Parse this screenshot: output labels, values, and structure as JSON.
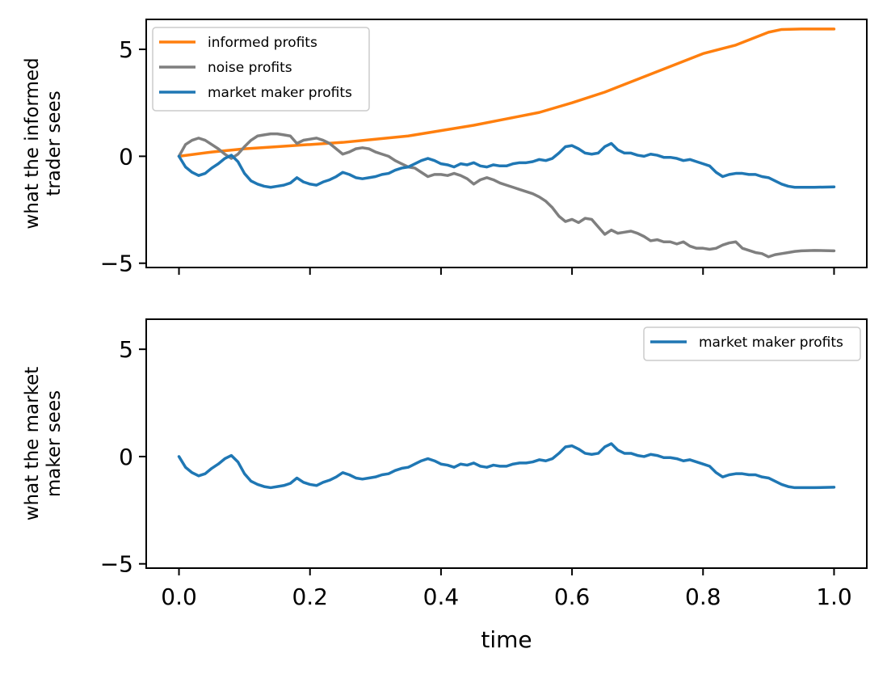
{
  "chart_data": [
    {
      "type": "line",
      "ylabel_lines": [
        "what the informed",
        "trader sees"
      ],
      "xlabel": "",
      "xlim": [
        -0.05,
        1.05
      ],
      "ylim": [
        -5.2,
        6.4
      ],
      "xticks": [
        0.0,
        0.2,
        0.4,
        0.6,
        0.8,
        1.0
      ],
      "xticklabels": [
        "",
        "",
        "",
        "",
        "",
        ""
      ],
      "yticks": [
        -5,
        0,
        5
      ],
      "yticklabels": [
        "−5",
        "0",
        "5"
      ],
      "grid": false,
      "legend_position": "upper-left",
      "series": [
        {
          "name": "informed profits",
          "color": "#ff7f0e",
          "x": [
            0.0,
            0.05,
            0.1,
            0.15,
            0.2,
            0.25,
            0.3,
            0.35,
            0.4,
            0.45,
            0.5,
            0.55,
            0.6,
            0.65,
            0.7,
            0.75,
            0.8,
            0.85,
            0.9,
            0.92,
            0.95,
            1.0
          ],
          "y": [
            0.0,
            0.2,
            0.35,
            0.45,
            0.55,
            0.65,
            0.8,
            0.95,
            1.2,
            1.45,
            1.75,
            2.05,
            2.5,
            3.0,
            3.6,
            4.2,
            4.8,
            5.2,
            5.8,
            5.93,
            5.95,
            5.95
          ]
        },
        {
          "name": "noise profits",
          "color": "#7f7f7f",
          "x": [
            0.0,
            0.01,
            0.02,
            0.03,
            0.04,
            0.05,
            0.06,
            0.07,
            0.08,
            0.09,
            0.1,
            0.11,
            0.12,
            0.13,
            0.14,
            0.15,
            0.16,
            0.17,
            0.18,
            0.19,
            0.2,
            0.21,
            0.22,
            0.23,
            0.24,
            0.25,
            0.26,
            0.27,
            0.28,
            0.29,
            0.3,
            0.31,
            0.32,
            0.33,
            0.34,
            0.35,
            0.36,
            0.37,
            0.38,
            0.39,
            0.4,
            0.41,
            0.42,
            0.43,
            0.44,
            0.45,
            0.46,
            0.47,
            0.48,
            0.49,
            0.5,
            0.51,
            0.52,
            0.53,
            0.54,
            0.55,
            0.56,
            0.57,
            0.58,
            0.59,
            0.6,
            0.61,
            0.62,
            0.63,
            0.64,
            0.65,
            0.66,
            0.67,
            0.68,
            0.69,
            0.7,
            0.71,
            0.72,
            0.73,
            0.74,
            0.75,
            0.76,
            0.77,
            0.78,
            0.79,
            0.8,
            0.81,
            0.82,
            0.83,
            0.84,
            0.85,
            0.86,
            0.87,
            0.88,
            0.89,
            0.9,
            0.91,
            0.92,
            0.93,
            0.94,
            0.95,
            0.97,
            1.0
          ],
          "y": [
            0.0,
            0.55,
            0.75,
            0.85,
            0.75,
            0.55,
            0.35,
            0.1,
            -0.1,
            0.1,
            0.45,
            0.75,
            0.95,
            1.0,
            1.05,
            1.05,
            1.0,
            0.95,
            0.6,
            0.75,
            0.8,
            0.85,
            0.75,
            0.6,
            0.35,
            0.1,
            0.2,
            0.35,
            0.4,
            0.35,
            0.2,
            0.1,
            0.0,
            -0.2,
            -0.35,
            -0.5,
            -0.55,
            -0.75,
            -0.95,
            -0.85,
            -0.85,
            -0.9,
            -0.8,
            -0.9,
            -1.05,
            -1.3,
            -1.1,
            -1.0,
            -1.1,
            -1.25,
            -1.35,
            -1.45,
            -1.55,
            -1.65,
            -1.75,
            -1.9,
            -2.1,
            -2.4,
            -2.8,
            -3.05,
            -2.95,
            -3.1,
            -2.9,
            -2.95,
            -3.3,
            -3.65,
            -3.45,
            -3.6,
            -3.55,
            -3.5,
            -3.6,
            -3.75,
            -3.95,
            -3.9,
            -4.0,
            -4.0,
            -4.1,
            -4.0,
            -4.2,
            -4.3,
            -4.3,
            -4.35,
            -4.3,
            -4.15,
            -4.05,
            -4.0,
            -4.3,
            -4.4,
            -4.5,
            -4.55,
            -4.7,
            -4.6,
            -4.55,
            -4.5,
            -4.45,
            -4.42,
            -4.4,
            -4.42
          ]
        },
        {
          "name": "market maker profits",
          "color": "#1f77b4",
          "x": [
            0.0,
            0.01,
            0.02,
            0.03,
            0.04,
            0.05,
            0.06,
            0.07,
            0.08,
            0.09,
            0.1,
            0.11,
            0.12,
            0.13,
            0.14,
            0.15,
            0.16,
            0.17,
            0.18,
            0.19,
            0.2,
            0.21,
            0.22,
            0.23,
            0.24,
            0.25,
            0.26,
            0.27,
            0.28,
            0.29,
            0.3,
            0.31,
            0.32,
            0.33,
            0.34,
            0.35,
            0.36,
            0.37,
            0.38,
            0.39,
            0.4,
            0.41,
            0.42,
            0.43,
            0.44,
            0.45,
            0.46,
            0.47,
            0.48,
            0.49,
            0.5,
            0.51,
            0.52,
            0.53,
            0.54,
            0.55,
            0.56,
            0.57,
            0.58,
            0.59,
            0.6,
            0.61,
            0.62,
            0.63,
            0.64,
            0.65,
            0.66,
            0.67,
            0.68,
            0.69,
            0.7,
            0.71,
            0.72,
            0.73,
            0.74,
            0.75,
            0.76,
            0.77,
            0.78,
            0.79,
            0.8,
            0.81,
            0.82,
            0.83,
            0.84,
            0.85,
            0.86,
            0.87,
            0.88,
            0.89,
            0.9,
            0.91,
            0.92,
            0.93,
            0.94,
            0.95,
            0.97,
            1.0
          ],
          "y": [
            0.0,
            -0.5,
            -0.75,
            -0.9,
            -0.8,
            -0.55,
            -0.35,
            -0.1,
            0.05,
            -0.25,
            -0.8,
            -1.15,
            -1.3,
            -1.4,
            -1.45,
            -1.4,
            -1.35,
            -1.25,
            -1.0,
            -1.2,
            -1.3,
            -1.35,
            -1.2,
            -1.1,
            -0.95,
            -0.75,
            -0.85,
            -1.0,
            -1.05,
            -1.0,
            -0.95,
            -0.85,
            -0.8,
            -0.65,
            -0.55,
            -0.5,
            -0.35,
            -0.2,
            -0.1,
            -0.2,
            -0.35,
            -0.4,
            -0.5,
            -0.35,
            -0.4,
            -0.3,
            -0.45,
            -0.5,
            -0.4,
            -0.45,
            -0.45,
            -0.35,
            -0.3,
            -0.3,
            -0.25,
            -0.15,
            -0.2,
            -0.1,
            0.15,
            0.45,
            0.5,
            0.35,
            0.15,
            0.1,
            0.15,
            0.45,
            0.6,
            0.3,
            0.15,
            0.15,
            0.05,
            0.0,
            0.1,
            0.05,
            -0.05,
            -0.05,
            -0.1,
            -0.2,
            -0.15,
            -0.25,
            -0.35,
            -0.45,
            -0.75,
            -0.95,
            -0.85,
            -0.8,
            -0.8,
            -0.85,
            -0.85,
            -0.95,
            -1.0,
            -1.15,
            -1.3,
            -1.4,
            -1.45,
            -1.45,
            -1.45,
            -1.43
          ]
        }
      ]
    },
    {
      "type": "line",
      "ylabel_lines": [
        "what the market",
        "maker sees"
      ],
      "xlabel": "time",
      "xlim": [
        -0.05,
        1.05
      ],
      "ylim": [
        -5.2,
        6.4
      ],
      "xticks": [
        0.0,
        0.2,
        0.4,
        0.6,
        0.8,
        1.0
      ],
      "xticklabels": [
        "0.0",
        "0.2",
        "0.4",
        "0.6",
        "0.8",
        "1.0"
      ],
      "yticks": [
        -5,
        0,
        5
      ],
      "yticklabels": [
        "−5",
        "0",
        "5"
      ],
      "grid": false,
      "legend_position": "upper-right",
      "series": [
        {
          "name": "market maker profits",
          "color": "#1f77b4",
          "x": [
            0.0,
            0.01,
            0.02,
            0.03,
            0.04,
            0.05,
            0.06,
            0.07,
            0.08,
            0.09,
            0.1,
            0.11,
            0.12,
            0.13,
            0.14,
            0.15,
            0.16,
            0.17,
            0.18,
            0.19,
            0.2,
            0.21,
            0.22,
            0.23,
            0.24,
            0.25,
            0.26,
            0.27,
            0.28,
            0.29,
            0.3,
            0.31,
            0.32,
            0.33,
            0.34,
            0.35,
            0.36,
            0.37,
            0.38,
            0.39,
            0.4,
            0.41,
            0.42,
            0.43,
            0.44,
            0.45,
            0.46,
            0.47,
            0.48,
            0.49,
            0.5,
            0.51,
            0.52,
            0.53,
            0.54,
            0.55,
            0.56,
            0.57,
            0.58,
            0.59,
            0.6,
            0.61,
            0.62,
            0.63,
            0.64,
            0.65,
            0.66,
            0.67,
            0.68,
            0.69,
            0.7,
            0.71,
            0.72,
            0.73,
            0.74,
            0.75,
            0.76,
            0.77,
            0.78,
            0.79,
            0.8,
            0.81,
            0.82,
            0.83,
            0.84,
            0.85,
            0.86,
            0.87,
            0.88,
            0.89,
            0.9,
            0.91,
            0.92,
            0.93,
            0.94,
            0.95,
            0.97,
            1.0
          ],
          "y": [
            0.0,
            -0.5,
            -0.75,
            -0.9,
            -0.8,
            -0.55,
            -0.35,
            -0.1,
            0.05,
            -0.25,
            -0.8,
            -1.15,
            -1.3,
            -1.4,
            -1.45,
            -1.4,
            -1.35,
            -1.25,
            -1.0,
            -1.2,
            -1.3,
            -1.35,
            -1.2,
            -1.1,
            -0.95,
            -0.75,
            -0.85,
            -1.0,
            -1.05,
            -1.0,
            -0.95,
            -0.85,
            -0.8,
            -0.65,
            -0.55,
            -0.5,
            -0.35,
            -0.2,
            -0.1,
            -0.2,
            -0.35,
            -0.4,
            -0.5,
            -0.35,
            -0.4,
            -0.3,
            -0.45,
            -0.5,
            -0.4,
            -0.45,
            -0.45,
            -0.35,
            -0.3,
            -0.3,
            -0.25,
            -0.15,
            -0.2,
            -0.1,
            0.15,
            0.45,
            0.5,
            0.35,
            0.15,
            0.1,
            0.15,
            0.45,
            0.6,
            0.3,
            0.15,
            0.15,
            0.05,
            0.0,
            0.1,
            0.05,
            -0.05,
            -0.05,
            -0.1,
            -0.2,
            -0.15,
            -0.25,
            -0.35,
            -0.45,
            -0.75,
            -0.95,
            -0.85,
            -0.8,
            -0.8,
            -0.85,
            -0.85,
            -0.95,
            -1.0,
            -1.15,
            -1.3,
            -1.4,
            -1.45,
            -1.45,
            -1.45,
            -1.43
          ]
        }
      ]
    }
  ]
}
